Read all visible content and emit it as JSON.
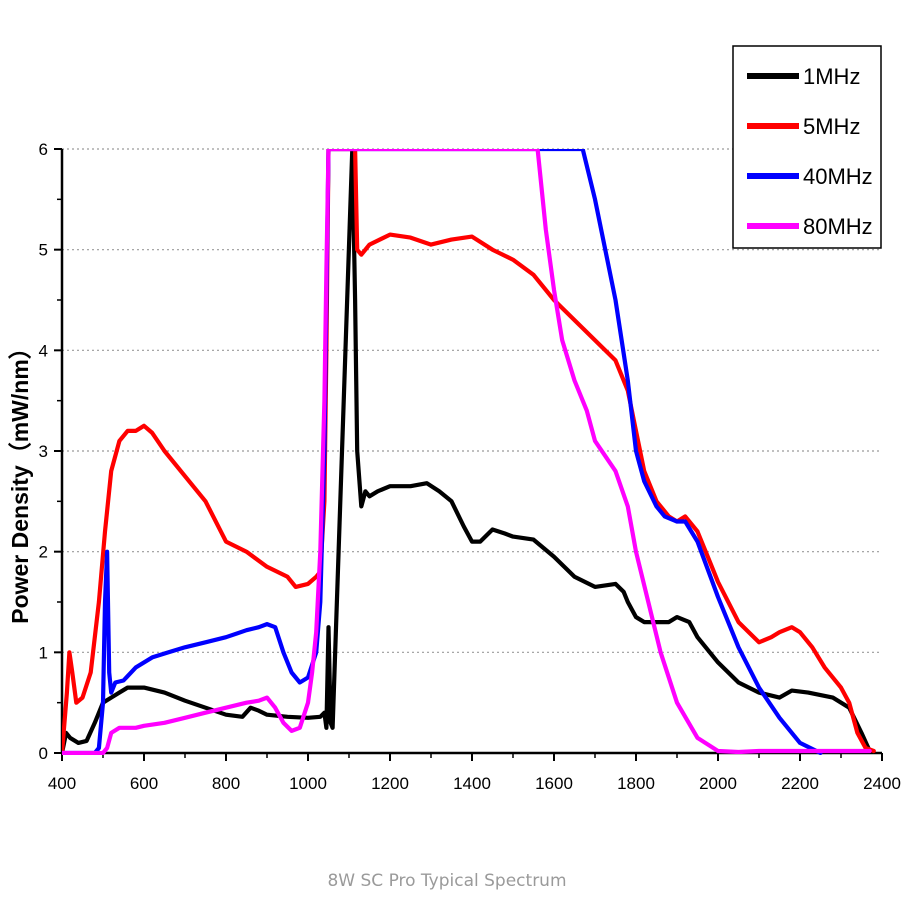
{
  "caption": "8W SC Pro Typical Spectrum",
  "chart_data": {
    "type": "line",
    "title": "",
    "xlabel": "",
    "ylabel": "Power Density（mW/nm）",
    "xlim": [
      400,
      2400
    ],
    "ylim": [
      0,
      6
    ],
    "xticks": [
      400,
      600,
      800,
      1000,
      1200,
      1400,
      1600,
      1800,
      2000,
      2200,
      2400
    ],
    "yticks": [
      0,
      1,
      2,
      3,
      4,
      5,
      6
    ],
    "grid": "horizontal dotted",
    "legend_position": "top-right",
    "series": [
      {
        "name": "1MHz",
        "color": "#000000",
        "x": [
          400,
          410,
          420,
          440,
          460,
          480,
          500,
          520,
          540,
          560,
          580,
          600,
          650,
          700,
          750,
          800,
          840,
          860,
          880,
          900,
          950,
          1000,
          1030,
          1040,
          1045,
          1050,
          1055,
          1060,
          1108,
          1115,
          1120,
          1130,
          1140,
          1150,
          1170,
          1200,
          1250,
          1290,
          1320,
          1350,
          1380,
          1400,
          1420,
          1450,
          1480,
          1500,
          1550,
          1600,
          1650,
          1700,
          1750,
          1770,
          1780,
          1800,
          1820,
          1850,
          1880,
          1900,
          1930,
          1950,
          2000,
          2050,
          2100,
          2150,
          2180,
          2220,
          2280,
          2320,
          2350,
          2370
        ],
        "y": [
          0.0,
          0.2,
          0.15,
          0.1,
          0.12,
          0.3,
          0.5,
          0.55,
          0.6,
          0.65,
          0.65,
          0.65,
          0.6,
          0.52,
          0.45,
          0.38,
          0.36,
          0.45,
          0.42,
          0.38,
          0.36,
          0.35,
          0.36,
          0.4,
          0.25,
          1.25,
          0.3,
          0.25,
          6.0,
          4.5,
          3.0,
          2.45,
          2.6,
          2.55,
          2.6,
          2.65,
          2.65,
          2.68,
          2.6,
          2.5,
          2.25,
          2.1,
          2.1,
          2.22,
          2.18,
          2.15,
          2.12,
          1.95,
          1.75,
          1.65,
          1.68,
          1.6,
          1.5,
          1.35,
          1.3,
          1.3,
          1.3,
          1.35,
          1.3,
          1.15,
          0.9,
          0.7,
          0.6,
          0.55,
          0.62,
          0.6,
          0.55,
          0.45,
          0.2,
          0.02
        ]
      },
      {
        "name": "5MHz",
        "color": "#ff0000",
        "x": [
          400,
          412,
          418,
          425,
          435,
          450,
          470,
          490,
          505,
          520,
          540,
          560,
          580,
          600,
          620,
          650,
          700,
          750,
          800,
          850,
          900,
          950,
          970,
          1000,
          1020,
          1030,
          1040,
          1045,
          1050,
          1115,
          1120,
          1130,
          1150,
          1200,
          1250,
          1300,
          1350,
          1400,
          1450,
          1500,
          1550,
          1600,
          1650,
          1700,
          1750,
          1780,
          1800,
          1820,
          1850,
          1880,
          1900,
          1920,
          1950,
          1980,
          2000,
          2050,
          2100,
          2130,
          2150,
          2180,
          2200,
          2230,
          2260,
          2300,
          2320,
          2340,
          2360,
          2380
        ],
        "y": [
          0.0,
          0.6,
          1.0,
          0.8,
          0.5,
          0.55,
          0.8,
          1.5,
          2.2,
          2.8,
          3.1,
          3.2,
          3.2,
          3.25,
          3.18,
          3.0,
          2.75,
          2.5,
          2.1,
          2.0,
          1.85,
          1.75,
          1.65,
          1.68,
          1.75,
          1.8,
          2.5,
          4.0,
          6.0,
          6.0,
          5.0,
          4.95,
          5.05,
          5.15,
          5.12,
          5.05,
          5.1,
          5.13,
          5.0,
          4.9,
          4.75,
          4.5,
          4.3,
          4.1,
          3.9,
          3.6,
          3.2,
          2.8,
          2.5,
          2.35,
          2.3,
          2.35,
          2.2,
          1.9,
          1.7,
          1.3,
          1.1,
          1.15,
          1.2,
          1.25,
          1.2,
          1.05,
          0.85,
          0.65,
          0.5,
          0.2,
          0.05,
          0.02
        ]
      },
      {
        "name": "40MHz",
        "color": "#0000ff",
        "x": [
          400,
          480,
          490,
          500,
          505,
          510,
          515,
          520,
          530,
          550,
          580,
          620,
          660,
          700,
          750,
          800,
          850,
          880,
          900,
          920,
          940,
          960,
          980,
          1000,
          1020,
          1030,
          1040,
          1045,
          1050,
          1670,
          1700,
          1720,
          1750,
          1780,
          1800,
          1820,
          1850,
          1870,
          1900,
          1920,
          1950,
          2000,
          2050,
          2100,
          2150,
          2200,
          2250
        ],
        "y": [
          0.0,
          0.0,
          0.05,
          0.5,
          1.5,
          2.0,
          0.8,
          0.6,
          0.7,
          0.72,
          0.85,
          0.95,
          1.0,
          1.05,
          1.1,
          1.15,
          1.22,
          1.25,
          1.28,
          1.25,
          1.0,
          0.8,
          0.7,
          0.75,
          1.0,
          1.5,
          3.0,
          4.5,
          6.0,
          6.0,
          5.5,
          5.1,
          4.5,
          3.7,
          3.0,
          2.7,
          2.45,
          2.35,
          2.3,
          2.3,
          2.1,
          1.55,
          1.05,
          0.65,
          0.35,
          0.1,
          0.0
        ]
      },
      {
        "name": "80MHz",
        "color": "#ff00ff",
        "x": [
          400,
          480,
          490,
          500,
          510,
          520,
          540,
          560,
          580,
          600,
          650,
          700,
          750,
          800,
          850,
          880,
          900,
          920,
          940,
          960,
          980,
          1000,
          1010,
          1020,
          1030,
          1040,
          1045,
          1050,
          1560,
          1580,
          1600,
          1620,
          1650,
          1680,
          1700,
          1750,
          1780,
          1800,
          1830,
          1860,
          1900,
          1950,
          2000,
          2050,
          2100,
          2150,
          2200,
          2250,
          2300,
          2370
        ],
        "y": [
          0.0,
          0.0,
          0.0,
          0.0,
          0.05,
          0.2,
          0.25,
          0.25,
          0.25,
          0.27,
          0.3,
          0.35,
          0.4,
          0.45,
          0.5,
          0.52,
          0.55,
          0.45,
          0.3,
          0.22,
          0.25,
          0.5,
          0.8,
          1.2,
          2.0,
          3.5,
          4.8,
          6.0,
          6.0,
          5.2,
          4.6,
          4.1,
          3.7,
          3.4,
          3.1,
          2.8,
          2.45,
          2.0,
          1.5,
          1.0,
          0.5,
          0.15,
          0.02,
          0.01,
          0.02,
          0.02,
          0.02,
          0.02,
          0.02,
          0.02
        ]
      }
    ]
  }
}
